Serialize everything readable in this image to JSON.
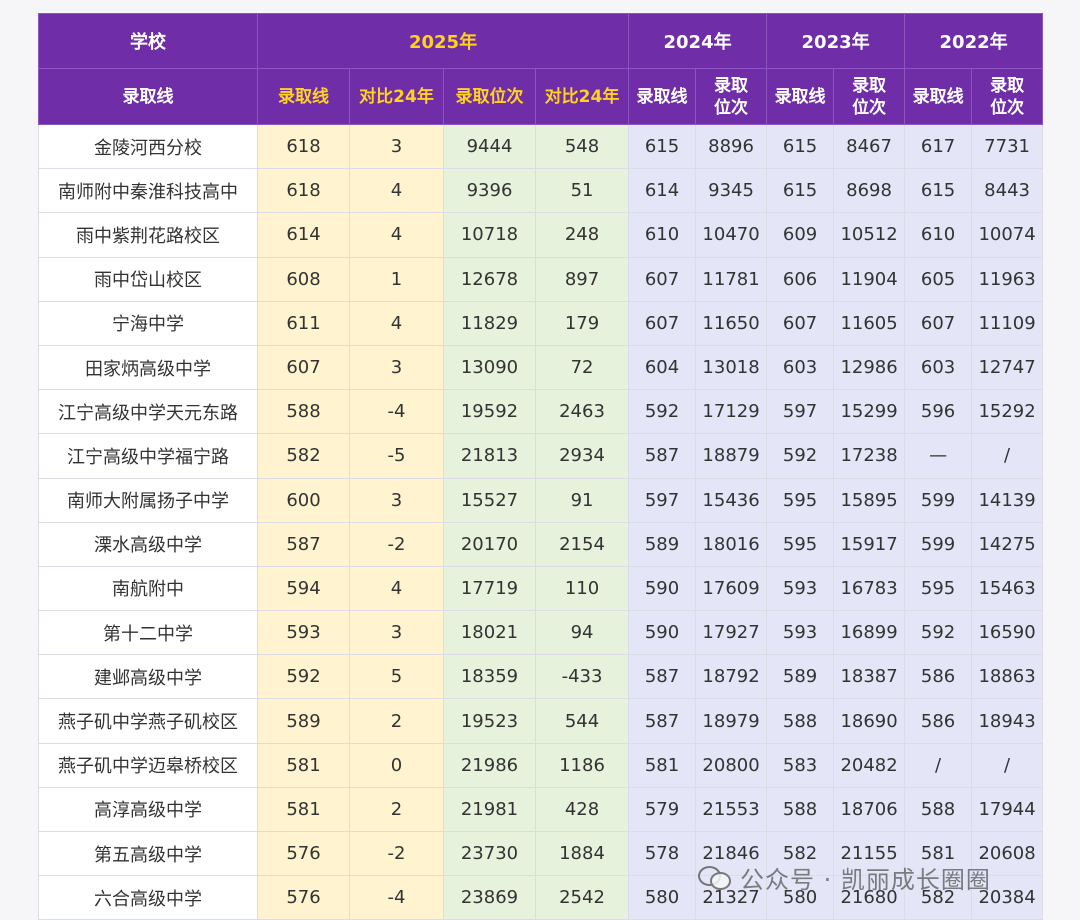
{
  "header": {
    "school": "学校",
    "admission_line": "录取线",
    "years": {
      "y2025": "2025年",
      "y2024": "2024年",
      "y2023": "2023年",
      "y2022": "2022年"
    },
    "sub": {
      "line": "录取线",
      "compare_line": "对比24年",
      "rank": "录取位次",
      "compare_rank": "对比24年",
      "rank_wrapped_1": "录取",
      "rank_wrapped_2": "位次"
    }
  },
  "rows": [
    {
      "school": "金陵河西分校",
      "cells": [
        "618",
        "3",
        "9444",
        "548",
        "615",
        "8896",
        "615",
        "8467",
        "617",
        "7731"
      ]
    },
    {
      "school": "南师附中秦淮科技高中",
      "cells": [
        "618",
        "4",
        "9396",
        "51",
        "614",
        "9345",
        "615",
        "8698",
        "615",
        "8443"
      ]
    },
    {
      "school": "雨中紫荆花路校区",
      "cells": [
        "614",
        "4",
        "10718",
        "248",
        "610",
        "10470",
        "609",
        "10512",
        "610",
        "10074"
      ]
    },
    {
      "school": "雨中岱山校区",
      "cells": [
        "608",
        "1",
        "12678",
        "897",
        "607",
        "11781",
        "606",
        "11904",
        "605",
        "11963"
      ]
    },
    {
      "school": "宁海中学",
      "cells": [
        "611",
        "4",
        "11829",
        "179",
        "607",
        "11650",
        "607",
        "11605",
        "607",
        "11109"
      ]
    },
    {
      "school": "田家炳高级中学",
      "cells": [
        "607",
        "3",
        "13090",
        "72",
        "604",
        "13018",
        "603",
        "12986",
        "603",
        "12747"
      ]
    },
    {
      "school": "江宁高级中学天元东路",
      "cells": [
        "588",
        "-4",
        "19592",
        "2463",
        "592",
        "17129",
        "597",
        "15299",
        "596",
        "15292"
      ]
    },
    {
      "school": "江宁高级中学福宁路",
      "cells": [
        "582",
        "-5",
        "21813",
        "2934",
        "587",
        "18879",
        "592",
        "17238",
        "—",
        "/"
      ]
    },
    {
      "school": "南师大附属扬子中学",
      "cells": [
        "600",
        "3",
        "15527",
        "91",
        "597",
        "15436",
        "595",
        "15895",
        "599",
        "14139"
      ]
    },
    {
      "school": "溧水高级中学",
      "cells": [
        "587",
        "-2",
        "20170",
        "2154",
        "589",
        "18016",
        "595",
        "15917",
        "599",
        "14275"
      ]
    },
    {
      "school": "南航附中",
      "cells": [
        "594",
        "4",
        "17719",
        "110",
        "590",
        "17609",
        "593",
        "16783",
        "595",
        "15463"
      ]
    },
    {
      "school": "第十二中学",
      "cells": [
        "593",
        "3",
        "18021",
        "94",
        "590",
        "17927",
        "593",
        "16899",
        "592",
        "16590"
      ]
    },
    {
      "school": "建邺高级中学",
      "cells": [
        "592",
        "5",
        "18359",
        "-433",
        "587",
        "18792",
        "589",
        "18387",
        "586",
        "18863"
      ]
    },
    {
      "school": "燕子矶中学燕子矶校区",
      "cells": [
        "589",
        "2",
        "19523",
        "544",
        "587",
        "18979",
        "588",
        "18690",
        "586",
        "18943"
      ]
    },
    {
      "school": "燕子矶中学迈皋桥校区",
      "cells": [
        "581",
        "0",
        "21986",
        "1186",
        "581",
        "20800",
        "583",
        "20482",
        "/",
        "/"
      ]
    },
    {
      "school": "高淳高级中学",
      "cells": [
        "581",
        "2",
        "21981",
        "428",
        "579",
        "21553",
        "588",
        "18706",
        "588",
        "17944"
      ]
    },
    {
      "school": "第五高级中学",
      "cells": [
        "576",
        "-2",
        "23730",
        "1884",
        "578",
        "21846",
        "582",
        "21155",
        "581",
        "20608"
      ]
    },
    {
      "school": "六合高级中学",
      "cells": [
        "576",
        "-4",
        "23869",
        "2542",
        "580",
        "21327",
        "580",
        "21680",
        "582",
        "20384"
      ]
    }
  ],
  "watermark": {
    "text": "公众号 · 凯丽成长圈圈",
    "icon": "wechat-icon"
  },
  "colors": {
    "header_bg": "#6f2da8",
    "header_highlight": "#ffd21f",
    "col_2025_line": "#fff4cf",
    "col_2025_rank": "#e6f2dc",
    "col_prior_years": "#e4e6f7"
  }
}
